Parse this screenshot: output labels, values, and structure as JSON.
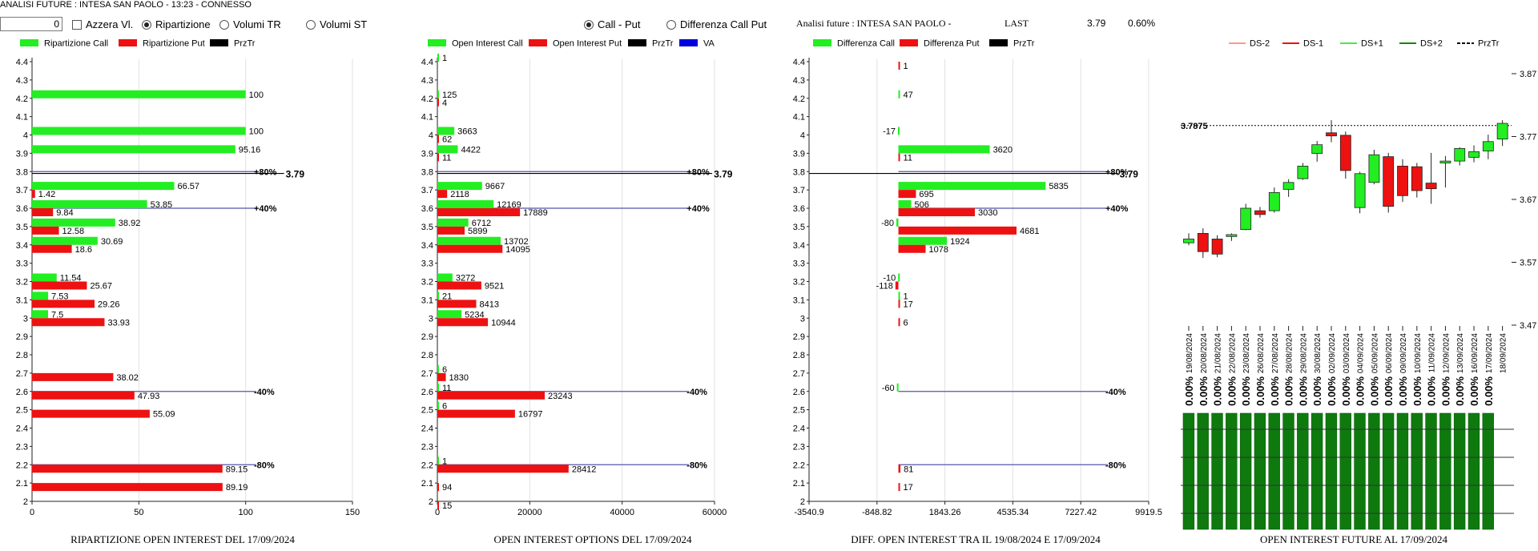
{
  "header": {
    "title": "ANALISI FUTURE : INTESA SAN PAOLO - 13:23 - CONNESSO"
  },
  "controls": {
    "number_value": "0",
    "azzera_label": "Azzera Vl.",
    "ripartizione_label": "Ripartizione",
    "volumi_tr_label": "Volumi TR",
    "volumi_st_label": "Volumi ST",
    "call_put_label": "Call - Put",
    "diff_call_put_label": "Differenza Call Put"
  },
  "info": {
    "analisi_label": "Analisi future : INTESA SAN PAOLO -",
    "last_label": "LAST",
    "last_value": "3.79",
    "change_value": "0.60%"
  },
  "colors": {
    "call": "#22ee22",
    "put": "#ee1111",
    "price": "#000000",
    "va": "#0000dd",
    "level": "#5555aa",
    "future_bar": "#0e7a0e"
  },
  "chart_data": [
    {
      "type": "bar",
      "title": "RIPARTIZIONE OPEN INTEREST DEL 17/09/2024",
      "legend": [
        "Ripartizione Call",
        "Ripartizione Put",
        "PrzTr"
      ],
      "y_ticks": [
        "4.4",
        "4.3",
        "4.2",
        "4.1",
        "4",
        "3.9",
        "3.8",
        "3.7",
        "3.6",
        "3.5",
        "3.4",
        "3.3",
        "3.2",
        "3.1",
        "3",
        "2.9",
        "2.8",
        "2.7",
        "2.6",
        "2.5",
        "2.4",
        "2.3",
        "2.2",
        "2.1",
        "2"
      ],
      "x_ticks": [
        "0",
        "50",
        "100",
        "150"
      ],
      "xlim": [
        0,
        150
      ],
      "call": [
        {
          "y": 4.2,
          "v": 100,
          "label": "100"
        },
        {
          "y": 4,
          "v": 100,
          "label": "100"
        },
        {
          "y": 3.9,
          "v": 95.16,
          "label": "95.16"
        },
        {
          "y": 3.7,
          "v": 66.57,
          "label": "66.57"
        },
        {
          "y": 3.6,
          "v": 53.85,
          "label": "53.85"
        },
        {
          "y": 3.5,
          "v": 38.92,
          "label": "38.92"
        },
        {
          "y": 3.4,
          "v": 30.69,
          "label": "30.69"
        },
        {
          "y": 3.2,
          "v": 11.54,
          "label": "11.54"
        },
        {
          "y": 3.1,
          "v": 7.53,
          "label": "7.53"
        },
        {
          "y": 3,
          "v": 7.5,
          "label": "7.5"
        }
      ],
      "put": [
        {
          "y": 3.7,
          "v": 1.42,
          "label": "1.42"
        },
        {
          "y": 3.6,
          "v": 9.84,
          "label": "9.84"
        },
        {
          "y": 3.5,
          "v": 12.58,
          "label": "12.58"
        },
        {
          "y": 3.4,
          "v": 18.6,
          "label": "18.6"
        },
        {
          "y": 3.2,
          "v": 25.67,
          "label": "25.67"
        },
        {
          "y": 3.1,
          "v": 29.26,
          "label": "29.26"
        },
        {
          "y": 3,
          "v": 33.93,
          "label": "33.93"
        },
        {
          "y": 2.7,
          "v": 38.02,
          "label": "38.02"
        },
        {
          "y": 2.6,
          "v": 47.93,
          "label": "47.93"
        },
        {
          "y": 2.5,
          "v": 55.09,
          "label": "55.09"
        },
        {
          "y": 2.2,
          "v": 89.15,
          "label": "89.15"
        },
        {
          "y": 2.1,
          "v": 89.19,
          "label": "89.19"
        }
      ],
      "levels": [
        {
          "y": 3.8,
          "label": "+80%"
        },
        {
          "y": 3.6,
          "label": "+40%"
        },
        {
          "y": 2.6,
          "label": "-40%"
        },
        {
          "y": 2.2,
          "label": "-80%"
        }
      ],
      "level_end": 105,
      "price": {
        "y": 3.79,
        "label": "3.79",
        "end": 118
      }
    },
    {
      "type": "bar",
      "title": "OPEN INTEREST OPTIONS DEL 17/09/2024",
      "legend": [
        "Open Interest Call",
        "Open Interest Put",
        "PrzTr",
        "VA"
      ],
      "y_ticks": [
        "4.4",
        "4.3",
        "4.2",
        "4.1",
        "4",
        "3.9",
        "3.8",
        "3.7",
        "3.6",
        "3.5",
        "3.4",
        "3.3",
        "3.2",
        "3.1",
        "3",
        "2.9",
        "2.8",
        "2.7",
        "2.6",
        "2.5",
        "2.4",
        "2.3",
        "2.2",
        "2.1",
        "2"
      ],
      "x_ticks": [
        "0",
        "20000",
        "40000",
        "60000"
      ],
      "xlim": [
        0,
        60000
      ],
      "call": [
        {
          "y": 4.4,
          "v": 1,
          "label": "1"
        },
        {
          "y": 4.2,
          "v": 125,
          "label": "125"
        },
        {
          "y": 4,
          "v": 3663,
          "label": "3663"
        },
        {
          "y": 3.9,
          "v": 4422,
          "label": "4422"
        },
        {
          "y": 3.7,
          "v": 9667,
          "label": "9667"
        },
        {
          "y": 3.6,
          "v": 12169,
          "label": "12169"
        },
        {
          "y": 3.5,
          "v": 6712,
          "label": "6712"
        },
        {
          "y": 3.4,
          "v": 13702,
          "label": "13702"
        },
        {
          "y": 3.2,
          "v": 3272,
          "label": "3272"
        },
        {
          "y": 3.1,
          "v": 21,
          "label": "21"
        },
        {
          "y": 3,
          "v": 5234,
          "label": "5234"
        },
        {
          "y": 2.7,
          "v": 6,
          "label": "6"
        },
        {
          "y": 2.6,
          "v": 11,
          "label": "11"
        },
        {
          "y": 2.5,
          "v": 6,
          "label": "6"
        },
        {
          "y": 2.2,
          "v": 1,
          "label": "1"
        }
      ],
      "put": [
        {
          "y": 4.2,
          "v": 4,
          "label": "4"
        },
        {
          "y": 4,
          "v": 62,
          "label": "62"
        },
        {
          "y": 3.9,
          "v": 11,
          "label": "11"
        },
        {
          "y": 3.7,
          "v": 2118,
          "label": "2118"
        },
        {
          "y": 3.6,
          "v": 17889,
          "label": "17889"
        },
        {
          "y": 3.5,
          "v": 5899,
          "label": "5899"
        },
        {
          "y": 3.4,
          "v": 14095,
          "label": "14095"
        },
        {
          "y": 3.2,
          "v": 9521,
          "label": "9521"
        },
        {
          "y": 3.1,
          "v": 8413,
          "label": "8413"
        },
        {
          "y": 3,
          "v": 10944,
          "label": "10944"
        },
        {
          "y": 2.7,
          "v": 1830,
          "label": "1830"
        },
        {
          "y": 2.6,
          "v": 23243,
          "label": "23243"
        },
        {
          "y": 2.5,
          "v": 16797,
          "label": "16797"
        },
        {
          "y": 2.2,
          "v": 28412,
          "label": "28412"
        },
        {
          "y": 2.1,
          "v": 94,
          "label": "94"
        },
        {
          "y": 2,
          "v": 15,
          "label": "15"
        }
      ],
      "levels": [
        {
          "y": 3.8,
          "label": "+80%"
        },
        {
          "y": 3.6,
          "label": "+40%"
        },
        {
          "y": 2.6,
          "label": "-40%"
        },
        {
          "y": 2.2,
          "label": "-80%"
        }
      ],
      "level_end": 54500,
      "price": {
        "y": 3.79,
        "label": "3.79",
        "end": 59500
      }
    },
    {
      "type": "bar",
      "title": "DIFF. OPEN INTEREST TRA IL 19/08/2024 E 17/09/2024",
      "legend": [
        "Differenza Call",
        "Differenza Put",
        "PrzTr"
      ],
      "y_ticks": [
        "4.4",
        "4.3",
        "4.2",
        "4.1",
        "4",
        "3.9",
        "3.8",
        "3.7",
        "3.6",
        "3.5",
        "3.4",
        "3.3",
        "3.2",
        "3.1",
        "3",
        "2.9",
        "2.8",
        "2.7",
        "2.6",
        "2.5",
        "2.4",
        "2.3",
        "2.2",
        "2.1",
        "2"
      ],
      "x_ticks": [
        "-3540.9",
        "-848.82",
        "1843.26",
        "4535.34",
        "7227.42",
        "9919.5"
      ],
      "xlim": [
        -3540.9,
        9919.5
      ],
      "call": [
        {
          "y": 4.2,
          "v": 47,
          "label": "47"
        },
        {
          "y": 4,
          "v": -17,
          "label": "-17"
        },
        {
          "y": 3.9,
          "v": 3620,
          "label": "3620"
        },
        {
          "y": 3.7,
          "v": 5835,
          "label": "5835"
        },
        {
          "y": 3.6,
          "v": 506,
          "label": "506"
        },
        {
          "y": 3.5,
          "v": -80,
          "label": "-80"
        },
        {
          "y": 3.4,
          "v": 1924,
          "label": "1924"
        },
        {
          "y": 3.2,
          "v": -10,
          "label": "-10"
        },
        {
          "y": 3.1,
          "v": 1,
          "label": "1"
        },
        {
          "y": 2.6,
          "v": -60,
          "label": "-60"
        }
      ],
      "put": [
        {
          "y": 4.4,
          "v": 1,
          "label": "1"
        },
        {
          "y": 3.9,
          "v": 11,
          "label": "11"
        },
        {
          "y": 3.7,
          "v": 695,
          "label": "695"
        },
        {
          "y": 3.6,
          "v": 3030,
          "label": "3030"
        },
        {
          "y": 3.5,
          "v": 4681,
          "label": "4681"
        },
        {
          "y": 3.4,
          "v": 1078,
          "label": "1078"
        },
        {
          "y": 3.2,
          "v": -118,
          "label": "-118"
        },
        {
          "y": 3.1,
          "v": 17,
          "label": "17"
        },
        {
          "y": 3,
          "v": 6,
          "label": "6"
        },
        {
          "y": 2.2,
          "v": 81,
          "label": "81"
        },
        {
          "y": 2.1,
          "v": 17,
          "label": "17"
        }
      ],
      "levels": [
        {
          "y": 3.8,
          "label": "+80%"
        },
        {
          "y": 3.6,
          "label": "+40%"
        },
        {
          "y": 2.6,
          "label": "-40%"
        },
        {
          "y": 2.2,
          "label": "-80%"
        }
      ],
      "level_start": 0,
      "level_end": 8300,
      "price": {
        "y": 3.79,
        "label": "3.79",
        "start": -3540.9,
        "end": 8700
      }
    },
    {
      "type": "candlestick",
      "title": "OPEN INTEREST FUTURE AL 17/09/2024",
      "legend": [
        "DS-2",
        "DS-1",
        "DS+1",
        "DS+2",
        "PrzTr"
      ],
      "legend_colors": [
        "#ff9988",
        "#ee1111",
        "#44ee44",
        "#118811",
        "#000000"
      ],
      "y_ticks": [
        "3.87",
        "3.77",
        "3.67",
        "3.57",
        "3.47"
      ],
      "ylim": [
        3.47,
        3.87
      ],
      "price_line": {
        "v": 3.7875,
        "label": "3.7875"
      },
      "dates": [
        "19/08/2024",
        "20/08/2024",
        "21/08/2024",
        "22/08/2024",
        "23/08/2024",
        "26/08/2024",
        "27/08/2024",
        "28/08/2024",
        "29/08/2024",
        "30/08/2024",
        "02/09/2024",
        "03/09/2024",
        "04/09/2024",
        "05/09/2024",
        "06/09/2024",
        "09/09/2024",
        "10/09/2024",
        "11/09/2024",
        "12/09/2024",
        "13/09/2024",
        "16/09/2024",
        "17/09/2024",
        "18/09/2024"
      ],
      "candles": [
        {
          "o": 3.601,
          "h": 3.616,
          "l": 3.597,
          "c": 3.607
        },
        {
          "o": 3.616,
          "h": 3.624,
          "l": 3.577,
          "c": 3.587
        },
        {
          "o": 3.607,
          "h": 3.613,
          "l": 3.578,
          "c": 3.583
        },
        {
          "o": 3.611,
          "h": 3.616,
          "l": 3.604,
          "c": 3.614
        },
        {
          "o": 3.622,
          "h": 3.663,
          "l": 3.621,
          "c": 3.656
        },
        {
          "o": 3.652,
          "h": 3.658,
          "l": 3.641,
          "c": 3.646
        },
        {
          "o": 3.652,
          "h": 3.689,
          "l": 3.649,
          "c": 3.681
        },
        {
          "o": 3.686,
          "h": 3.702,
          "l": 3.674,
          "c": 3.697
        },
        {
          "o": 3.703,
          "h": 3.728,
          "l": 3.701,
          "c": 3.723
        },
        {
          "o": 3.743,
          "h": 3.763,
          "l": 3.73,
          "c": 3.757
        },
        {
          "o": 3.776,
          "h": 3.796,
          "l": 3.761,
          "c": 3.771
        },
        {
          "o": 3.772,
          "h": 3.778,
          "l": 3.703,
          "c": 3.716
        },
        {
          "o": 3.657,
          "h": 3.714,
          "l": 3.648,
          "c": 3.711
        },
        {
          "o": 3.697,
          "h": 3.749,
          "l": 3.694,
          "c": 3.741
        },
        {
          "o": 3.738,
          "h": 3.744,
          "l": 3.649,
          "c": 3.659
        },
        {
          "o": 3.723,
          "h": 3.734,
          "l": 3.666,
          "c": 3.676
        },
        {
          "o": 3.722,
          "h": 3.728,
          "l": 3.673,
          "c": 3.684
        },
        {
          "o": 3.696,
          "h": 3.744,
          "l": 3.663,
          "c": 3.687
        },
        {
          "o": 3.728,
          "h": 3.739,
          "l": 3.689,
          "c": 3.731
        },
        {
          "o": 3.731,
          "h": 3.753,
          "l": 3.724,
          "c": 3.751
        },
        {
          "o": 3.737,
          "h": 3.756,
          "l": 3.729,
          "c": 3.746
        },
        {
          "o": 3.747,
          "h": 3.773,
          "l": 3.734,
          "c": 3.762
        },
        {
          "o": 3.766,
          "h": 3.796,
          "l": 3.755,
          "c": 3.791
        }
      ],
      "percent_labels": [
        "0.00%",
        "0.00%",
        "0.00%",
        "0.00%",
        "0.00%",
        "0.00%",
        "0.00%",
        "0.00%",
        "0.00%",
        "0.00%",
        "0.00%",
        "0.00%",
        "0.00%",
        "0.00%",
        "0.00%",
        "0.00%",
        "0.00%",
        "0.00%",
        "0.00%",
        "0.00%",
        "0.00%",
        "0.00%"
      ],
      "oi_values": [
        1,
        1,
        1,
        1,
        1,
        1,
        1,
        1,
        1,
        1,
        1,
        1,
        1,
        1,
        1,
        1,
        1,
        1,
        1,
        1,
        1,
        1
      ]
    }
  ]
}
